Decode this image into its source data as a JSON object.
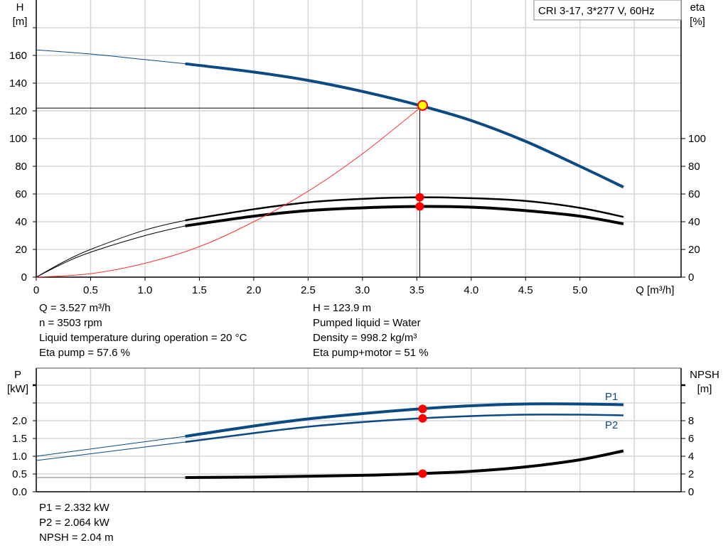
{
  "legend_box": "CRI 3-17, 3*277 V, 60Hz",
  "colors": {
    "head": "#0b4a82",
    "power": "#0b4a82",
    "efficiency": "#000000",
    "npsh": "#000000",
    "system": "#ff3333",
    "duty_point": "#ff0000",
    "duty_point_fill": "#ffff00",
    "grid": "#d6d6d6"
  },
  "info_top_left": [
    "Q = 3.527 m³/h",
    "n = 3503 rpm",
    "Liquid temperature during operation = 20 °C",
    "Eta pump = 57.6 %"
  ],
  "info_top_right": [
    "H = 123.9 m",
    "Pumped liquid = Water",
    "Density = 998.2 kg/m³",
    "Eta pump+motor = 51 %"
  ],
  "info_bottom": [
    "P1 = 2.332 kW",
    "P2 = 2.064 kW",
    "NPSH = 2.04 m"
  ],
  "chart_data": [
    {
      "type": "line",
      "xlabel": "Q [m³/h]",
      "ylabel_left": {
        "name": "H",
        "unit": "[m]"
      },
      "ylabel_right": {
        "name": "eta",
        "unit": "[%]"
      },
      "xlim": [
        0,
        5.93
      ],
      "ylim_left": [
        0,
        200
      ],
      "ylim_right": [
        0,
        200
      ],
      "x_ticks": [
        "0",
        "0.5",
        "1.0",
        "1.5",
        "2.0",
        "2.5",
        "3.0",
        "3.5",
        "4.0",
        "4.5",
        "5.0"
      ],
      "y_ticks_left": [
        "0",
        "20",
        "40",
        "60",
        "80",
        "100",
        "120",
        "140",
        "160"
      ],
      "y_ticks_right": [
        "0",
        "20",
        "40",
        "60",
        "80",
        "100"
      ],
      "grid": true,
      "thin_until_q": 1.37,
      "series": [
        {
          "key": "head",
          "axis": "left",
          "x": [
            0,
            0.5,
            1.0,
            1.37,
            2.0,
            2.5,
            3.0,
            3.527,
            4.0,
            4.5,
            5.0,
            5.4
          ],
          "y": [
            164,
            161,
            157,
            154,
            148,
            142,
            134,
            123.9,
            113,
            98,
            80,
            65
          ]
        },
        {
          "key": "eta_pump",
          "axis": "right",
          "x": [
            0,
            0.25,
            0.5,
            1.0,
            1.37,
            2.0,
            2.5,
            3.0,
            3.527,
            4.0,
            4.5,
            5.0,
            5.4
          ],
          "y": [
            0,
            11,
            20,
            34,
            41,
            49,
            54,
            56.5,
            57.6,
            57,
            55,
            50,
            43.5
          ]
        },
        {
          "key": "eta_total",
          "axis": "right",
          "x": [
            0,
            0.25,
            0.5,
            1.0,
            1.37,
            2.0,
            2.5,
            3.0,
            3.527,
            4.0,
            4.5,
            5.0,
            5.4
          ],
          "y": [
            0,
            10,
            18,
            30,
            37,
            44,
            48,
            50,
            51,
            50.5,
            48,
            44,
            38.5
          ]
        },
        {
          "key": "system",
          "axis": "left",
          "x": [
            0,
            0.5,
            1.0,
            1.5,
            2.0,
            2.5,
            3.0,
            3.527
          ],
          "y": [
            0,
            2.5,
            10,
            22,
            40,
            62,
            89,
            122
          ]
        }
      ],
      "duty_point": {
        "q": 3.527,
        "h": 123.9,
        "eta_pump": 57.6,
        "eta_total": 51,
        "h_line": 122
      }
    },
    {
      "type": "line",
      "ylabel_left": {
        "name": "P",
        "unit": "[kW]"
      },
      "ylabel_right": {
        "name": "NPSH",
        "unit": "[m]"
      },
      "xlim": [
        0,
        5.93
      ],
      "ylim_left": [
        0,
        3.5
      ],
      "ylim_right": [
        0,
        14
      ],
      "y_ticks_left": [
        "0.0",
        "0.5",
        "1.0",
        "1.5",
        "2.0"
      ],
      "y_ticks_right": [
        "0",
        "2",
        "4",
        "6",
        "8"
      ],
      "grid": true,
      "series": [
        {
          "key": "P1",
          "name": "P1",
          "axis": "left",
          "x": [
            0,
            1.37,
            2.0,
            2.5,
            3.0,
            3.527,
            4.0,
            4.5,
            5.0,
            5.4
          ],
          "y": [
            1.0,
            1.56,
            1.85,
            2.05,
            2.2,
            2.332,
            2.42,
            2.47,
            2.47,
            2.45
          ]
        },
        {
          "key": "P2",
          "name": "P2",
          "axis": "left",
          "x": [
            0,
            1.37,
            2.0,
            2.5,
            3.0,
            3.527,
            4.0,
            4.5,
            5.0,
            5.4
          ],
          "y": [
            0.88,
            1.4,
            1.65,
            1.83,
            1.96,
            2.064,
            2.13,
            2.17,
            2.17,
            2.15
          ]
        },
        {
          "key": "NPSH",
          "axis": "right",
          "x": [
            0,
            1.37,
            2.0,
            3.0,
            3.527,
            4.0,
            4.5,
            5.0,
            5.4
          ],
          "y": [
            1.6,
            1.6,
            1.65,
            1.85,
            2.04,
            2.3,
            2.8,
            3.6,
            4.6
          ]
        }
      ],
      "duty_point": {
        "q": 3.527,
        "p1": 2.332,
        "p2": 2.064,
        "npsh": 2.04
      }
    }
  ]
}
